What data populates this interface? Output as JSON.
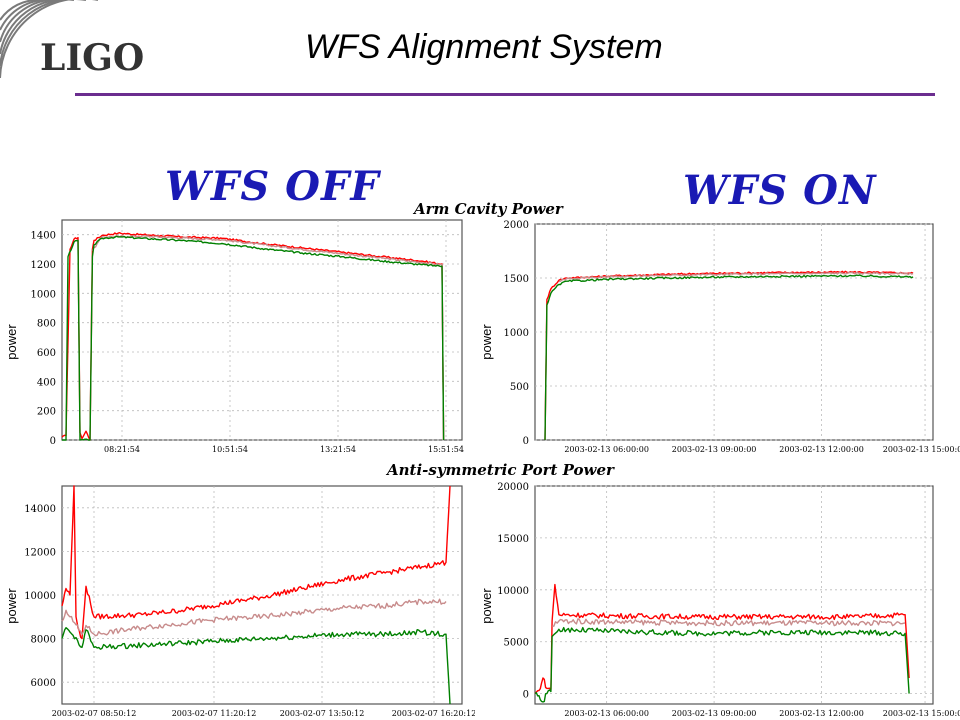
{
  "header": {
    "logo_text": "LIGO",
    "title": "WFS Alignment System"
  },
  "labels": {
    "wfs_off": "WFS OFF",
    "wfs_on": "WFS ON",
    "arm_cavity_title": "Arm Cavity Power",
    "anti_symmetric_title": "Anti-symmetric Port Power"
  },
  "colors": {
    "red": "#ff0000",
    "pink": "#c88c8c",
    "green": "#008000",
    "accent_purple": "#6b2d8f",
    "blue_label": "#1a1ab4"
  },
  "chart_data": [
    {
      "id": "arm_off",
      "type": "line",
      "title": "Arm Cavity Power",
      "xlabel": "",
      "ylabel": "power",
      "xlim": [
        0,
        100
      ],
      "ylim": [
        0,
        1500
      ],
      "yticks": [
        0,
        200,
        400,
        600,
        800,
        1000,
        1200,
        1400
      ],
      "xticks": [
        {
          "at": 15,
          "label": "08:21:54"
        },
        {
          "at": 42,
          "label": "10:51:54"
        },
        {
          "at": 69,
          "label": "13:21:54"
        },
        {
          "at": 96,
          "label": "15:51:54"
        }
      ],
      "grid": true,
      "series": [
        {
          "color": "red",
          "points": [
            [
              0,
              20
            ],
            [
              1,
              30
            ],
            [
              2,
              1300
            ],
            [
              3,
              1370
            ],
            [
              4,
              1380
            ],
            [
              4.5,
              50
            ],
            [
              5,
              10
            ],
            [
              6,
              60
            ],
            [
              7,
              0
            ],
            [
              7.6,
              1300
            ],
            [
              8,
              1360
            ],
            [
              10,
              1395
            ],
            [
              14,
              1410
            ],
            [
              20,
              1400
            ],
            [
              30,
              1385
            ],
            [
              40,
              1375
            ],
            [
              50,
              1340
            ],
            [
              60,
              1310
            ],
            [
              70,
              1280
            ],
            [
              80,
              1250
            ],
            [
              90,
              1220
            ],
            [
              95,
              1200
            ],
            [
              95.4,
              0
            ]
          ]
        },
        {
          "color": "pink",
          "points": [
            [
              7.6,
              1290
            ],
            [
              10,
              1385
            ],
            [
              20,
              1390
            ],
            [
              40,
              1365
            ],
            [
              60,
              1300
            ],
            [
              80,
              1240
            ],
            [
              95,
              1195
            ],
            [
              95.4,
              0
            ]
          ]
        },
        {
          "color": "green",
          "points": [
            [
              0,
              0
            ],
            [
              1,
              0
            ],
            [
              1.5,
              1250
            ],
            [
              3,
              1350
            ],
            [
              4,
              1360
            ],
            [
              4.5,
              0
            ],
            [
              7,
              0
            ],
            [
              7.6,
              1250
            ],
            [
              8,
              1330
            ],
            [
              10,
              1375
            ],
            [
              14,
              1385
            ],
            [
              20,
              1375
            ],
            [
              30,
              1360
            ],
            [
              40,
              1340
            ],
            [
              50,
              1305
            ],
            [
              60,
              1275
            ],
            [
              70,
              1250
            ],
            [
              80,
              1220
            ],
            [
              90,
              1195
            ],
            [
              95,
              1185
            ],
            [
              95.4,
              0
            ]
          ]
        }
      ]
    },
    {
      "id": "arm_on",
      "type": "line",
      "title": "Arm Cavity Power",
      "xlabel": "",
      "ylabel": "power",
      "xlim": [
        0,
        100
      ],
      "ylim": [
        0,
        2000
      ],
      "yticks": [
        0,
        500,
        1000,
        1500,
        2000
      ],
      "xticks": [
        {
          "at": 18,
          "label": "2003-02-13 06:00:00"
        },
        {
          "at": 45,
          "label": "2003-02-13 09:00:00"
        },
        {
          "at": 72,
          "label": "2003-02-13 12:00:00"
        },
        {
          "at": 98,
          "label": "2003-02-13 15:00:00"
        }
      ],
      "grid": true,
      "series": [
        {
          "color": "red",
          "points": [
            [
              2.5,
              0
            ],
            [
              3,
              1300
            ],
            [
              4,
              1400
            ],
            [
              6,
              1480
            ],
            [
              8,
              1500
            ],
            [
              20,
              1520
            ],
            [
              40,
              1540
            ],
            [
              60,
              1550
            ],
            [
              80,
              1555
            ],
            [
              95,
              1545
            ]
          ]
        },
        {
          "color": "pink",
          "points": [
            [
              6,
              1470
            ],
            [
              8,
              1495
            ],
            [
              20,
              1515
            ],
            [
              40,
              1530
            ],
            [
              60,
              1540
            ],
            [
              80,
              1545
            ],
            [
              95,
              1540
            ]
          ]
        },
        {
          "color": "green",
          "points": [
            [
              2.5,
              0
            ],
            [
              3,
              1250
            ],
            [
              4,
              1360
            ],
            [
              6,
              1440
            ],
            [
              8,
              1470
            ],
            [
              20,
              1490
            ],
            [
              40,
              1505
            ],
            [
              60,
              1515
            ],
            [
              80,
              1520
            ],
            [
              95,
              1510
            ]
          ]
        }
      ]
    },
    {
      "id": "as_off",
      "type": "line",
      "title": "Anti-symmetric Port Power",
      "xlabel": "",
      "ylabel": "power",
      "xlim": [
        0,
        100
      ],
      "ylim": [
        5000,
        15000
      ],
      "yticks": [
        6000,
        8000,
        10000,
        12000,
        14000
      ],
      "xticks": [
        {
          "at": 8,
          "label": "2003-02-07 08:50:12"
        },
        {
          "at": 38,
          "label": "2003-02-07 11:20:12"
        },
        {
          "at": 65,
          "label": "2003-02-07 13:50:12"
        },
        {
          "at": 93,
          "label": "2003-02-07 16:20:12"
        }
      ],
      "grid": true,
      "series": [
        {
          "color": "red",
          "points": [
            [
              0,
              9500
            ],
            [
              1,
              10300
            ],
            [
              2,
              10000
            ],
            [
              3,
              15000
            ],
            [
              3.5,
              9000
            ],
            [
              4,
              8500
            ],
            [
              5,
              8000
            ],
            [
              6,
              10400
            ],
            [
              8,
              9000
            ],
            [
              20,
              9100
            ],
            [
              30,
              9300
            ],
            [
              40,
              9600
            ],
            [
              50,
              9900
            ],
            [
              60,
              10300
            ],
            [
              70,
              10700
            ],
            [
              80,
              11000
            ],
            [
              90,
              11300
            ],
            [
              96,
              11500
            ],
            [
              97,
              15000
            ]
          ]
        },
        {
          "color": "pink",
          "points": [
            [
              0,
              8800
            ],
            [
              1,
              9300
            ],
            [
              2,
              9000
            ],
            [
              5,
              8200
            ],
            [
              6,
              8600
            ],
            [
              8,
              8200
            ],
            [
              20,
              8500
            ],
            [
              30,
              8700
            ],
            [
              40,
              8900
            ],
            [
              50,
              9000
            ],
            [
              60,
              9200
            ],
            [
              70,
              9400
            ],
            [
              80,
              9500
            ],
            [
              90,
              9700
            ],
            [
              96,
              9700
            ]
          ]
        },
        {
          "color": "green",
          "points": [
            [
              0,
              8000
            ],
            [
              1,
              8500
            ],
            [
              2,
              8300
            ],
            [
              5,
              7600
            ],
            [
              6,
              8400
            ],
            [
              8,
              7600
            ],
            [
              20,
              7700
            ],
            [
              30,
              7800
            ],
            [
              40,
              7900
            ],
            [
              50,
              8000
            ],
            [
              60,
              8100
            ],
            [
              70,
              8200
            ],
            [
              80,
              8200
            ],
            [
              90,
              8300
            ],
            [
              96,
              8200
            ],
            [
              97,
              5000
            ]
          ]
        }
      ]
    },
    {
      "id": "as_on",
      "type": "line",
      "title": "Anti-symmetric Port Power",
      "xlabel": "",
      "ylabel": "power",
      "xlim": [
        0,
        100
      ],
      "ylim": [
        -1000,
        20000
      ],
      "yticks": [
        0,
        5000,
        10000,
        15000,
        20000
      ],
      "xticks": [
        {
          "at": 18,
          "label": "2003-02-13 06:00:00"
        },
        {
          "at": 45,
          "label": "2003-02-13 09:00:00"
        },
        {
          "at": 72,
          "label": "2003-02-13 12:00:00"
        },
        {
          "at": 98,
          "label": "2003-02-13 15:00:00"
        }
      ],
      "grid": true,
      "series": [
        {
          "color": "red",
          "points": [
            [
              0,
              0
            ],
            [
              1,
              300
            ],
            [
              2,
              1500
            ],
            [
              3,
              500
            ],
            [
              4,
              400
            ],
            [
              4.3,
              7000
            ],
            [
              5,
              10500
            ],
            [
              6,
              7600
            ],
            [
              20,
              7500
            ],
            [
              40,
              7400
            ],
            [
              60,
              7400
            ],
            [
              80,
              7400
            ],
            [
              93,
              7600
            ],
            [
              94,
              1500
            ]
          ]
        },
        {
          "color": "pink",
          "points": [
            [
              4.3,
              6500
            ],
            [
              6,
              7000
            ],
            [
              20,
              6900
            ],
            [
              40,
              6800
            ],
            [
              60,
              6800
            ],
            [
              80,
              6800
            ],
            [
              93,
              6800
            ]
          ]
        },
        {
          "color": "green",
          "points": [
            [
              0,
              0
            ],
            [
              1,
              -200
            ],
            [
              2,
              -800
            ],
            [
              3,
              0
            ],
            [
              4,
              200
            ],
            [
              4.3,
              5500
            ],
            [
              6,
              6200
            ],
            [
              20,
              6000
            ],
            [
              40,
              5800
            ],
            [
              60,
              5900
            ],
            [
              80,
              5900
            ],
            [
              93,
              5800
            ],
            [
              94,
              0
            ]
          ]
        }
      ]
    }
  ]
}
